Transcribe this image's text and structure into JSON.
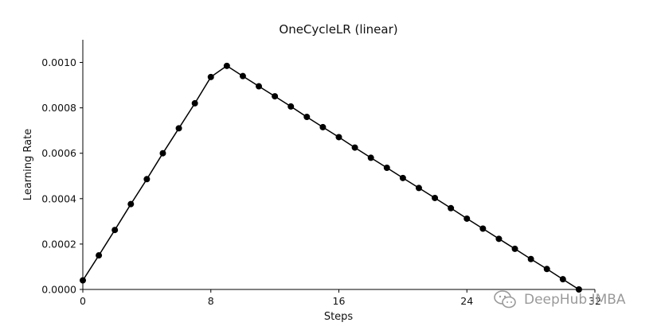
{
  "chart_data": {
    "type": "line",
    "title": "OneCycleLR (linear)",
    "xlabel": "Steps",
    "ylabel": "Learning Rate",
    "xlim": [
      0,
      32
    ],
    "ylim": [
      0,
      0.0011
    ],
    "xticks": [
      0,
      8,
      16,
      24,
      32
    ],
    "xtick_labels": [
      "0",
      "8",
      "16",
      "24",
      "32"
    ],
    "yticks": [
      0,
      0.0002,
      0.0004,
      0.0006,
      0.0008,
      0.001
    ],
    "ytick_labels": [
      "0.0000",
      "0.0002",
      "0.0004",
      "0.0006",
      "0.0008",
      "0.0010"
    ],
    "grid": false,
    "series": [
      {
        "marker": "circle",
        "color": "#000000",
        "x": [
          0,
          1,
          2,
          3,
          4,
          5,
          6,
          7,
          8,
          9,
          10,
          11,
          12,
          13,
          14,
          15,
          16,
          17,
          18,
          19,
          20,
          21,
          22,
          23,
          24,
          25,
          26,
          27,
          28,
          29,
          30,
          31
        ],
        "y": [
          4e-05,
          0.00015,
          0.000262,
          0.000376,
          0.000486,
          0.0006,
          0.00071,
          0.00082,
          0.000936,
          0.000985,
          0.00094,
          0.000895,
          0.000851,
          0.000806,
          0.00076,
          0.000715,
          0.000671,
          0.000625,
          0.00058,
          0.000536,
          0.000491,
          0.000447,
          0.000403,
          0.000358,
          0.000312,
          0.000268,
          0.000223,
          0.000179,
          0.000134,
          9e-05,
          4.5e-05,
          0.0
        ]
      }
    ]
  },
  "watermark": {
    "text": "DeepHub IMBA",
    "icon": "wechat-icon",
    "color": "#9a9a9a"
  }
}
